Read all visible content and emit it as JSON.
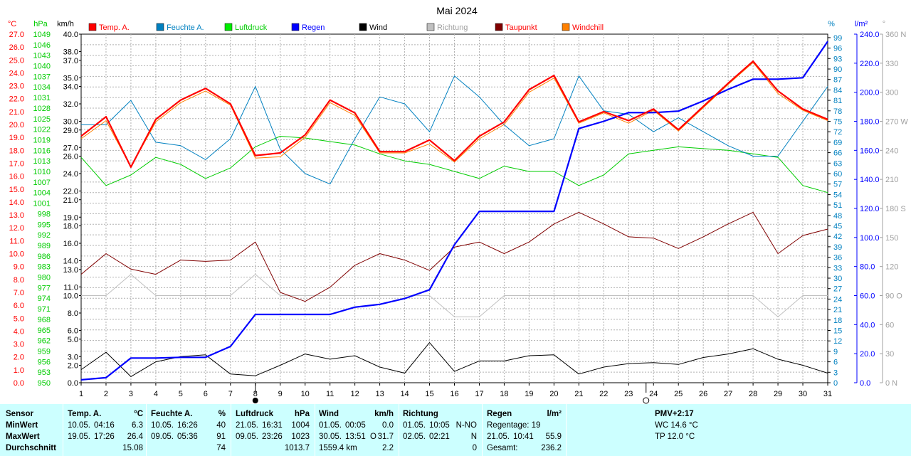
{
  "chart_data": {
    "type": "line",
    "title": "Mai 2024",
    "x": [
      1,
      2,
      3,
      4,
      5,
      6,
      7,
      8,
      9,
      10,
      11,
      12,
      13,
      14,
      15,
      16,
      17,
      18,
      19,
      20,
      21,
      22,
      23,
      24,
      25,
      26,
      27,
      28,
      29,
      30,
      31
    ],
    "axes": {
      "temp": {
        "unit": "°C",
        "range": [
          0,
          27
        ],
        "ticks": [
          "27.0",
          "26.0",
          "25.0",
          "24.0",
          "23.0",
          "22.0",
          "21.0",
          "20.0",
          "19.0",
          "18.0",
          "17.0",
          "16.0",
          "15.0",
          "14.0",
          "13.0",
          "12.0",
          "11.0",
          "10.0",
          "9.0",
          "8.0",
          "7.0",
          "6.0",
          "5.0",
          "4.0",
          "3.0",
          "2.0",
          "1.0",
          "0.0"
        ],
        "color": "#ff0000"
      },
      "pressure": {
        "unit": "hPa",
        "range": [
          950,
          1049
        ],
        "ticks": [
          "1049",
          "1046",
          "1043",
          "1040",
          "1037",
          "1034",
          "1031",
          "1028",
          "1025",
          "1022",
          "1019",
          "1016",
          "1013",
          "1010",
          "1007",
          "1004",
          "1001",
          "998",
          "995",
          "992",
          "989",
          "986",
          "983",
          "980",
          "977",
          "974",
          "971",
          "968",
          "965",
          "962",
          "959",
          "956",
          "953",
          "950"
        ],
        "color": "#00cc00"
      },
      "wind": {
        "unit": "km/h",
        "range": [
          0,
          40
        ],
        "ticks": [
          {
            "v": 40,
            "t": "40.0"
          },
          {
            "v": 38,
            "t": "38.0"
          },
          {
            "v": 37,
            "t": "37.0"
          },
          {
            "v": 35,
            "t": "35.0"
          },
          {
            "v": 34,
            "t": "34.0"
          },
          {
            "v": 32,
            "t": "32.0"
          },
          {
            "v": 30,
            "t": "30.0"
          },
          {
            "v": 29,
            "t": "29.0"
          },
          {
            "v": 27,
            "t": "27.0"
          },
          {
            "v": 26,
            "t": "26.0"
          },
          {
            "v": 24,
            "t": "24.0"
          },
          {
            "v": 22,
            "t": "22.0"
          },
          {
            "v": 21,
            "t": "21.0"
          },
          {
            "v": 19,
            "t": "19.0"
          },
          {
            "v": 18,
            "t": "18.0"
          },
          {
            "v": 16,
            "t": "16.0"
          },
          {
            "v": 14,
            "t": "14.0"
          },
          {
            "v": 13,
            "t": "13.0"
          },
          {
            "v": 11,
            "t": "11.0"
          },
          {
            "v": 10,
            "t": "10.0"
          },
          {
            "v": 8,
            "t": "8.0"
          },
          {
            "v": 6,
            "t": "6.0"
          },
          {
            "v": 5,
            "t": "5.0"
          },
          {
            "v": 3,
            "t": "3.0"
          },
          {
            "v": 2,
            "t": "2.0"
          },
          {
            "v": 0,
            "t": "0.0"
          }
        ],
        "color": "#000000"
      },
      "humidity": {
        "unit": "%",
        "range": [
          0,
          100
        ],
        "ticks": [
          "99",
          "96",
          "93",
          "90",
          "87",
          "84",
          "81",
          "78",
          "75",
          "72",
          "69",
          "66",
          "63",
          "60",
          "57",
          "54",
          "51",
          "48",
          "45",
          "42",
          "39",
          "36",
          "33",
          "30",
          "27",
          "24",
          "21",
          "18",
          "15",
          "12",
          "9",
          "6",
          "3",
          "0"
        ],
        "color": "#0080c0"
      },
      "rain": {
        "unit": "l/m²",
        "range": [
          0,
          240
        ],
        "ticks": [
          "240.0",
          "220.0",
          "200.0",
          "180.0",
          "160.0",
          "140.0",
          "120.0",
          "100.0",
          "80.0",
          "60.0",
          "40.0",
          "20.0",
          "0.0"
        ],
        "color": "#0000ff"
      },
      "direction": {
        "unit": "",
        "range": [
          0,
          360
        ],
        "ticks": [
          {
            "v": 360,
            "t": "360 N"
          },
          {
            "v": 330,
            "t": "330"
          },
          {
            "v": 300,
            "t": "300"
          },
          {
            "v": 270,
            "t": "270 W"
          },
          {
            "v": 240,
            "t": "240"
          },
          {
            "v": 210,
            "t": "210"
          },
          {
            "v": 180,
            "t": "180 S"
          },
          {
            "v": 150,
            "t": "150"
          },
          {
            "v": 120,
            "t": "120"
          },
          {
            "v": 90,
            "t": "90 O"
          },
          {
            "v": 60,
            "t": "60"
          },
          {
            "v": 30,
            "t": "30"
          },
          {
            "v": 0,
            "t": "0 N"
          }
        ],
        "color": "#a0a0a0"
      }
    },
    "series": [
      {
        "name": "Temp. A.",
        "axis": "temp",
        "color": "#ff0000",
        "width": 2.2,
        "values": [
          19.1,
          20.6,
          16.7,
          20.4,
          21.9,
          22.8,
          21.6,
          17.6,
          17.8,
          19.2,
          21.9,
          20.9,
          17.9,
          17.9,
          18.8,
          17.2,
          19.1,
          20.2,
          22.7,
          23.8,
          20.2,
          21.0,
          20.3,
          21.2,
          19.6,
          21.4,
          23.2,
          24.9,
          22.6,
          21.2,
          20.4
        ]
      },
      {
        "name": "Feuchte A.",
        "axis": "humidity",
        "color": "#0080c0",
        "width": 1,
        "values": [
          74,
          74,
          81,
          69,
          68,
          64,
          70,
          85,
          67,
          60,
          57,
          70,
          82,
          80,
          72,
          88,
          82,
          74,
          68,
          70,
          88,
          78,
          77,
          72,
          76,
          72,
          68,
          65,
          65,
          75,
          85
        ]
      },
      {
        "name": "Luftdruck",
        "axis": "pressure",
        "color": "#00cc00",
        "width": 1,
        "values": [
          1014,
          1006,
          1009,
          1014,
          1012,
          1008,
          1011,
          1017,
          1020,
          1019.5,
          1018.5,
          1017.5,
          1015,
          1013,
          1012,
          1010,
          1008,
          1011.5,
          1010,
          1010,
          1006,
          1009,
          1015,
          1016,
          1017,
          1016.5,
          1016,
          1015,
          1014,
          1006,
          1004
        ]
      },
      {
        "name": "Regen",
        "axis": "rain",
        "color": "#0000ff",
        "width": 2.2,
        "values": [
          2,
          3.5,
          17,
          17,
          17.5,
          17.5,
          25,
          47,
          47,
          47,
          47,
          52,
          54,
          58,
          64,
          95,
          118,
          118,
          118,
          118,
          175,
          180,
          186,
          186,
          187,
          194,
          202,
          209,
          209,
          210,
          235
        ]
      },
      {
        "name": "Wind",
        "axis": "wind",
        "color": "#000000",
        "width": 1,
        "values": [
          1.5,
          3.5,
          0.7,
          2.4,
          3.0,
          3.2,
          1.0,
          0.8,
          2.0,
          3.3,
          2.7,
          3.1,
          1.8,
          1.1,
          4.6,
          1.3,
          2.5,
          2.5,
          3.1,
          3.2,
          1.0,
          1.8,
          2.2,
          2.3,
          2.1,
          2.9,
          3.3,
          3.9,
          2.7,
          2.0,
          1.1
        ]
      },
      {
        "name": "Richtung",
        "axis": "direction",
        "color": "#c0c0c0",
        "width": 1,
        "values": [
          90,
          90,
          112,
          90,
          90,
          90,
          90,
          112,
          90,
          90,
          90,
          90,
          90,
          90,
          90,
          68,
          68,
          90,
          90,
          90,
          90,
          90,
          90,
          90,
          90,
          90,
          90,
          90,
          68,
          90,
          90
        ]
      },
      {
        "name": "Taupunkt",
        "axis": "temp",
        "color": "#800000",
        "width": 1,
        "values": [
          8.4,
          10.0,
          8.8,
          8.4,
          9.5,
          9.4,
          9.5,
          10.9,
          7.0,
          6.3,
          7.4,
          9.1,
          10.0,
          9.5,
          8.7,
          10.5,
          10.9,
          10.0,
          10.9,
          12.3,
          13.2,
          12.3,
          11.3,
          11.2,
          10.4,
          11.3,
          12.3,
          13.2,
          10.0,
          11.4,
          11.9
        ]
      },
      {
        "name": "Windchill",
        "axis": "temp",
        "color": "#ff8000",
        "width": 1,
        "values": [
          18.9,
          20.3,
          16.7,
          20.2,
          21.7,
          22.6,
          21.5,
          17.4,
          17.5,
          19.0,
          21.7,
          20.7,
          17.8,
          17.8,
          18.5,
          17.1,
          18.9,
          20.0,
          22.5,
          23.6,
          20.1,
          20.9,
          20.1,
          21.1,
          19.5,
          21.3,
          23.1,
          24.8,
          22.4,
          21.1,
          20.3
        ]
      }
    ],
    "legend": {
      "placement": "top",
      "items": [
        {
          "label": "Temp. A.",
          "color": "#ff0000",
          "text_color": "#ff0000"
        },
        {
          "label": "Feuchte A.",
          "color": "#0080c0",
          "text_color": "#0080c0"
        },
        {
          "label": "Luftdruck",
          "color": "#00ee00",
          "text_color": "#00cc00"
        },
        {
          "label": "Regen",
          "color": "#0000ff",
          "text_color": "#0000ff"
        },
        {
          "label": "Wind",
          "color": "#000000",
          "text_color": "#000000"
        },
        {
          "label": "Richtung",
          "color": "#c0c0c0",
          "text_color": "#a0a0a0"
        },
        {
          "label": "Taupunkt",
          "color": "#800000",
          "text_color": "#ff0000"
        },
        {
          "label": "Windchill",
          "color": "#ff8000",
          "text_color": "#ff0000"
        }
      ]
    },
    "grid": true,
    "moon_markers": [
      {
        "day": 8,
        "type": "new-moon"
      },
      {
        "day": 23.7,
        "type": "full-moon"
      }
    ]
  },
  "stats": {
    "sensor": {
      "title": "Sensor",
      "rows": [
        "MinWert",
        "MaxWert",
        "Durchschnitt"
      ]
    },
    "temp": {
      "title": "Temp. A.",
      "unit": "°C",
      "min_date": "10.05.",
      "min_time": "04:16",
      "min_val": "6.3",
      "max_date": "19.05.",
      "max_time": "17:26",
      "max_val": "26.4",
      "avg": "15.08"
    },
    "humidity": {
      "title": "Feuchte A.",
      "unit": "%",
      "min_date": "10.05.",
      "min_time": "16:26",
      "min_val": "40",
      "max_date": "09.05.",
      "max_time": "05:36",
      "max_val": "91",
      "avg": "74"
    },
    "pressure": {
      "title": "Luftdruck",
      "unit": "hPa",
      "min_date": "21.05.",
      "min_time": "16:31",
      "min_val": "1004",
      "max_date": "09.05.",
      "max_time": "23:26",
      "max_val": "1023",
      "avg": "1013.7"
    },
    "wind": {
      "title": "Wind",
      "unit": "km/h",
      "min_date": "01.05.",
      "min_time": "00:05",
      "min_val": "0.0",
      "max_date": "30.05.",
      "max_time": "13:51",
      "max_dir": "O",
      "max_val": "31.7",
      "distance": "1559.4 km",
      "avg": "2.2"
    },
    "direction": {
      "title": "Richtung",
      "min_date": "01.05.",
      "min_time": "10:05",
      "min_val": "N-NO",
      "max_date": "02.05.",
      "max_time": "02:21",
      "max_val": "N",
      "avg": "0"
    },
    "rain": {
      "title": "Regen",
      "unit": "l/m²",
      "days_label": "Regentage: 19",
      "max_date": "21.05.",
      "max_time": "10:41",
      "max_val": "55.9",
      "total_label": "Gesamt:",
      "total_val": "236.2"
    },
    "pmv": {
      "title": "PMV+2:17",
      "wc": "WC 14.6 °C",
      "tp": "TP 12.0 °C"
    }
  }
}
